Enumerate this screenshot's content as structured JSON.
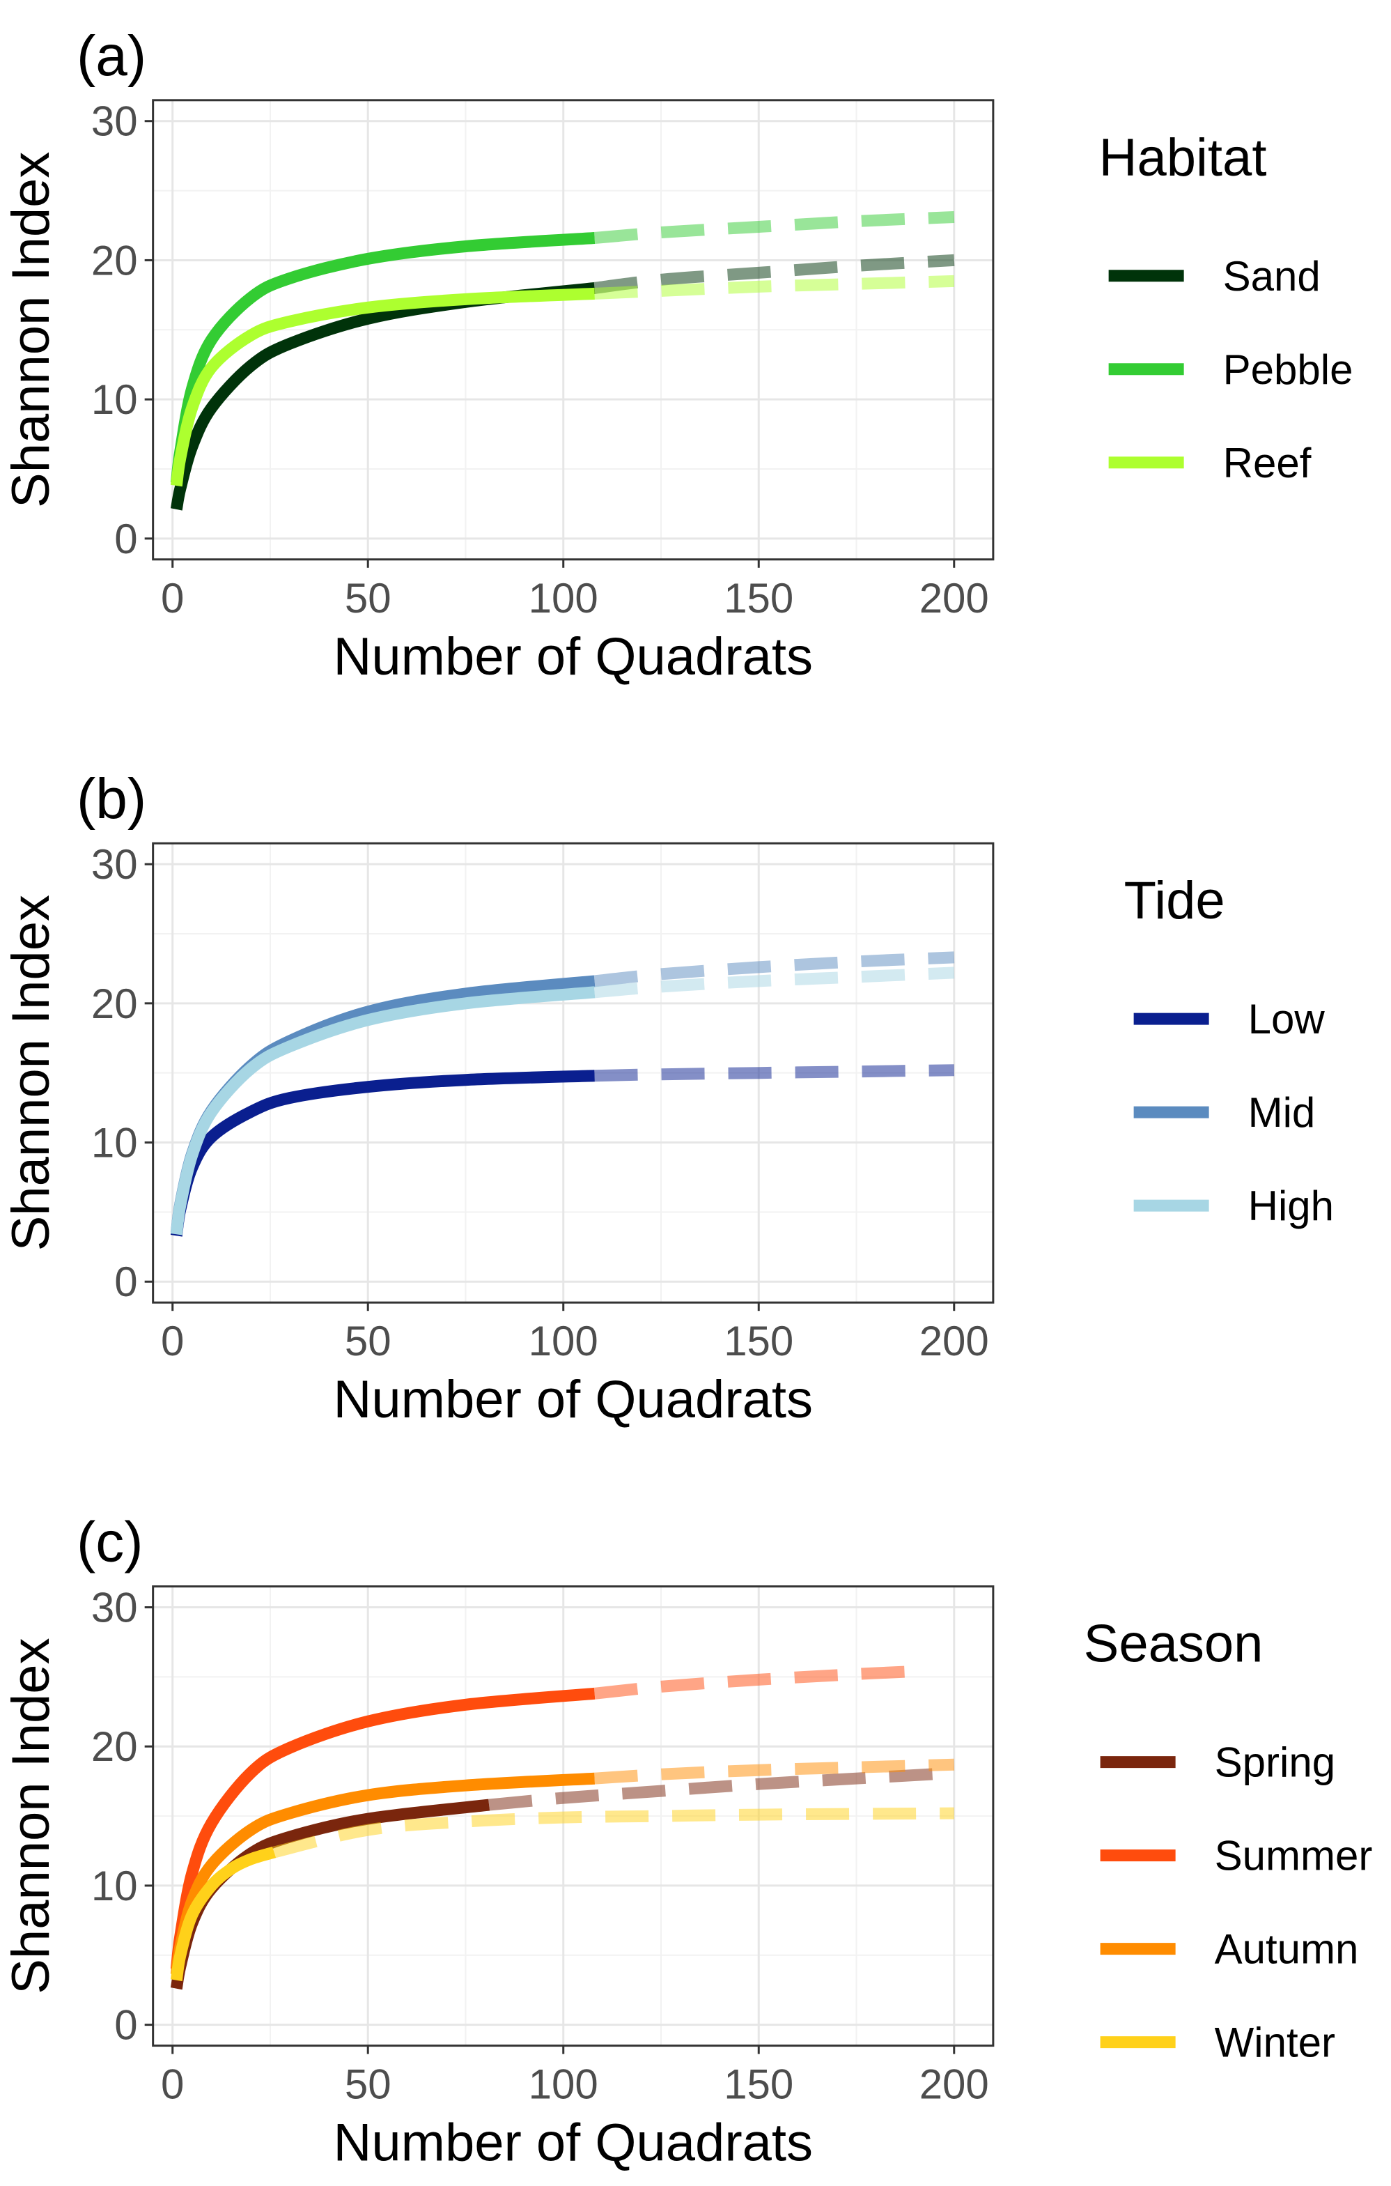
{
  "chart_data": [
    {
      "type": "line",
      "panel_label": "(a)",
      "xlabel": "Number of Quadrats",
      "ylabel": "Shannon Index",
      "xlim": [
        -5,
        210
      ],
      "ylim": [
        -1.5,
        31.5
      ],
      "xticks": [
        0,
        50,
        100,
        150,
        200
      ],
      "yticks": [
        0,
        10,
        20,
        30
      ],
      "xtick_labels": [
        "0",
        "50",
        "100",
        "150",
        "200"
      ],
      "ytick_labels": [
        "0",
        "10",
        "20",
        "30"
      ],
      "grid": true,
      "legend_title": "Habitat",
      "legend_position": "right",
      "line_style_note": "solid = observed, dashed = extrapolated",
      "series": [
        {
          "name": "Sand",
          "color": "#00330a",
          "observed_max_x": 108,
          "x": [
            1,
            2,
            5,
            10,
            20,
            30,
            50,
            75,
            108,
            125,
            150,
            175,
            200
          ],
          "values": [
            2.1,
            3.6,
            6.6,
            9.4,
            12.4,
            14.0,
            15.8,
            17.0,
            18.0,
            18.6,
            19.1,
            19.6,
            20.0
          ]
        },
        {
          "name": "Pebble",
          "color": "#33cc33",
          "observed_max_x": 108,
          "x": [
            1,
            2,
            5,
            10,
            20,
            30,
            50,
            75,
            108,
            125,
            150,
            175,
            200
          ],
          "values": [
            4.0,
            6.3,
            10.8,
            14.3,
            17.3,
            18.7,
            20.1,
            21.0,
            21.6,
            22.0,
            22.4,
            22.8,
            23.1
          ]
        },
        {
          "name": "Reef",
          "color": "#adff2f",
          "observed_max_x": 108,
          "x": [
            1,
            2,
            5,
            10,
            20,
            30,
            50,
            75,
            108,
            125,
            150,
            175,
            200
          ],
          "values": [
            3.8,
            5.8,
            9.4,
            12.3,
            14.6,
            15.6,
            16.6,
            17.2,
            17.6,
            17.8,
            18.1,
            18.3,
            18.5
          ]
        }
      ]
    },
    {
      "type": "line",
      "panel_label": "(b)",
      "xlabel": "Number of Quadrats",
      "ylabel": "Shannon Index",
      "xlim": [
        -5,
        210
      ],
      "ylim": [
        -1.5,
        31.5
      ],
      "xticks": [
        0,
        50,
        100,
        150,
        200
      ],
      "yticks": [
        0,
        10,
        20,
        30
      ],
      "xtick_labels": [
        "0",
        "50",
        "100",
        "150",
        "200"
      ],
      "ytick_labels": [
        "0",
        "10",
        "20",
        "30"
      ],
      "grid": true,
      "legend_title": "Tide",
      "legend_position": "right",
      "line_style_note": "solid = observed, dashed = extrapolated",
      "series": [
        {
          "name": "Low",
          "color": "#0a1f8f",
          "observed_max_x": 108,
          "x": [
            1,
            2,
            5,
            10,
            20,
            30,
            50,
            75,
            108,
            125,
            150,
            175,
            200
          ],
          "values": [
            3.3,
            5.2,
            8.2,
            10.4,
            12.2,
            13.2,
            14.0,
            14.5,
            14.8,
            14.9,
            15.0,
            15.1,
            15.2
          ]
        },
        {
          "name": "Mid",
          "color": "#5b8bbf",
          "observed_max_x": 108,
          "x": [
            1,
            2,
            5,
            10,
            20,
            30,
            50,
            75,
            108,
            125,
            150,
            175,
            200
          ],
          "values": [
            3.5,
            5.6,
            9.2,
            12.3,
            15.5,
            17.3,
            19.4,
            20.7,
            21.6,
            22.1,
            22.6,
            23.0,
            23.3
          ]
        },
        {
          "name": "High",
          "color": "#a7d6e4",
          "observed_max_x": 108,
          "x": [
            1,
            2,
            5,
            10,
            20,
            30,
            50,
            75,
            108,
            125,
            150,
            175,
            200
          ],
          "values": [
            3.4,
            5.5,
            9.1,
            12.2,
            15.3,
            16.9,
            18.8,
            20.0,
            20.8,
            21.2,
            21.6,
            21.9,
            22.2
          ]
        }
      ]
    },
    {
      "type": "line",
      "panel_label": "(c)",
      "xlabel": "Number of Quadrats",
      "ylabel": "Shannon Index",
      "xlim": [
        -5,
        210
      ],
      "ylim": [
        -1.5,
        31.5
      ],
      "xticks": [
        0,
        50,
        100,
        150,
        200
      ],
      "yticks": [
        0,
        10,
        20,
        30
      ],
      "xtick_labels": [
        "0",
        "50",
        "100",
        "150",
        "200"
      ],
      "ytick_labels": [
        "0",
        "10",
        "20",
        "30"
      ],
      "grid": true,
      "legend_title": "Season",
      "legend_position": "right",
      "line_style_note": "solid = observed, dashed = extrapolated",
      "series": [
        {
          "name": "Spring",
          "color": "#7a260d",
          "observed_max_x": 81,
          "x": [
            1,
            2,
            5,
            10,
            20,
            30,
            50,
            81,
            100,
            125,
            150,
            175,
            200
          ],
          "values": [
            2.6,
            4.2,
            7.3,
            9.8,
            12.3,
            13.5,
            14.8,
            15.8,
            16.3,
            16.8,
            17.3,
            17.7,
            18.1
          ]
        },
        {
          "name": "Summer",
          "color": "#ff4c0d",
          "observed_max_x": 108,
          "x": [
            1,
            2,
            5,
            10,
            20,
            30,
            50,
            75,
            108,
            125,
            150,
            175,
            190
          ],
          "values": [
            4.0,
            6.4,
            10.9,
            14.5,
            18.1,
            19.9,
            21.8,
            23.0,
            23.8,
            24.3,
            24.8,
            25.2,
            25.4
          ]
        },
        {
          "name": "Autumn",
          "color": "#ff8c00",
          "observed_max_x": 108,
          "x": [
            1,
            2,
            5,
            10,
            20,
            30,
            50,
            75,
            108,
            125,
            150,
            175,
            200
          ],
          "values": [
            3.6,
            5.6,
            8.9,
            11.5,
            14.0,
            15.2,
            16.5,
            17.2,
            17.7,
            18.0,
            18.3,
            18.5,
            18.7
          ]
        },
        {
          "name": "Winter",
          "color": "#ffd11a",
          "observed_max_x": 26,
          "x": [
            1,
            2,
            5,
            10,
            15,
            20,
            26,
            50,
            75,
            100,
            125,
            150,
            200
          ],
          "values": [
            3.2,
            5.0,
            7.9,
            10.0,
            11.2,
            11.9,
            12.4,
            14.0,
            14.6,
            14.9,
            15.0,
            15.1,
            15.2
          ]
        }
      ]
    }
  ]
}
